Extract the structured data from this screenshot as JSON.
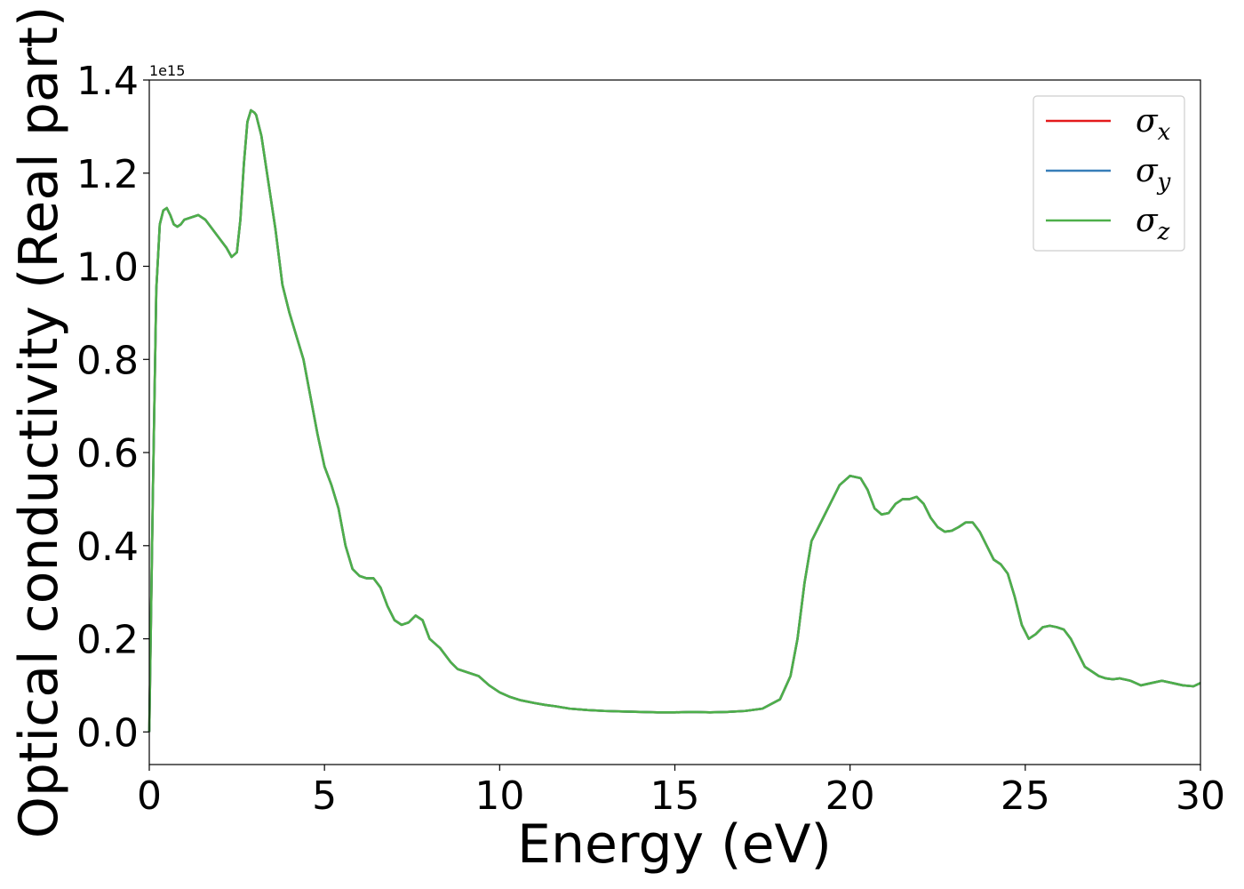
{
  "chart_data": {
    "type": "line",
    "title": "",
    "xlabel": "Energy (eV)",
    "ylabel": "Optical conductivity (Real part)",
    "y_offset_label": "1e15",
    "y_scale": 1000000000000000.0,
    "xlim": [
      0,
      30
    ],
    "ylim": [
      -0.07,
      1.4
    ],
    "x_ticks": [
      "0",
      "5",
      "10",
      "15",
      "20",
      "25",
      "30"
    ],
    "y_ticks": [
      "0.0",
      "0.2",
      "0.4",
      "0.6",
      "0.8",
      "1.0",
      "1.2",
      "1.4"
    ],
    "grid": false,
    "legend_position": "top-right",
    "series": [
      {
        "name": "σx",
        "symbol": "σ",
        "sub": "x",
        "color": "#e41a1c"
      },
      {
        "name": "σy",
        "symbol": "σ",
        "sub": "y",
        "color": "#377eb8"
      },
      {
        "name": "σz",
        "symbol": "σ",
        "sub": "z",
        "color": "#4daf4a"
      }
    ],
    "x": [
      0,
      0.1,
      0.2,
      0.3,
      0.4,
      0.5,
      0.6,
      0.7,
      0.8,
      0.9,
      1.0,
      1.2,
      1.4,
      1.6,
      1.8,
      2.0,
      2.2,
      2.35,
      2.5,
      2.6,
      2.7,
      2.8,
      2.9,
      3.0,
      3.05,
      3.1,
      3.2,
      3.4,
      3.6,
      3.8,
      4.0,
      4.2,
      4.4,
      4.6,
      4.8,
      5.0,
      5.2,
      5.4,
      5.6,
      5.8,
      6.0,
      6.2,
      6.4,
      6.6,
      6.8,
      7.0,
      7.2,
      7.4,
      7.6,
      7.8,
      8.0,
      8.3,
      8.6,
      8.8,
      9.0,
      9.2,
      9.4,
      9.7,
      10.0,
      10.3,
      10.6,
      11.0,
      11.3,
      11.6,
      12.0,
      12.5,
      13.0,
      13.5,
      14.0,
      14.5,
      15.0,
      15.5,
      16.0,
      16.5,
      17.0,
      17.5,
      18.0,
      18.3,
      18.5,
      18.7,
      18.9,
      19.1,
      19.3,
      19.5,
      19.7,
      20.0,
      20.3,
      20.5,
      20.7,
      20.9,
      21.1,
      21.3,
      21.5,
      21.7,
      21.9,
      22.1,
      22.3,
      22.5,
      22.7,
      22.9,
      23.1,
      23.3,
      23.5,
      23.7,
      23.9,
      24.1,
      24.3,
      24.5,
      24.7,
      24.9,
      25.1,
      25.3,
      25.5,
      25.7,
      25.9,
      26.1,
      26.3,
      26.5,
      26.7,
      26.9,
      27.1,
      27.3,
      27.5,
      27.7,
      28.0,
      28.3,
      28.6,
      28.9,
      29.2,
      29.5,
      29.8,
      30.0
    ],
    "y": [
      0.0,
      0.5,
      0.95,
      1.09,
      1.12,
      1.125,
      1.11,
      1.09,
      1.085,
      1.09,
      1.1,
      1.105,
      1.11,
      1.1,
      1.08,
      1.06,
      1.04,
      1.02,
      1.03,
      1.1,
      1.22,
      1.31,
      1.335,
      1.33,
      1.325,
      1.31,
      1.28,
      1.18,
      1.08,
      0.96,
      0.9,
      0.85,
      0.8,
      0.72,
      0.64,
      0.57,
      0.53,
      0.48,
      0.4,
      0.35,
      0.335,
      0.33,
      0.33,
      0.31,
      0.27,
      0.24,
      0.23,
      0.235,
      0.25,
      0.24,
      0.2,
      0.18,
      0.15,
      0.135,
      0.13,
      0.125,
      0.12,
      0.1,
      0.085,
      0.075,
      0.068,
      0.062,
      0.058,
      0.055,
      0.05,
      0.047,
      0.045,
      0.044,
      0.043,
      0.042,
      0.042,
      0.043,
      0.042,
      0.043,
      0.045,
      0.05,
      0.07,
      0.12,
      0.2,
      0.32,
      0.41,
      0.44,
      0.47,
      0.5,
      0.53,
      0.55,
      0.545,
      0.52,
      0.48,
      0.467,
      0.47,
      0.49,
      0.5,
      0.5,
      0.505,
      0.49,
      0.46,
      0.44,
      0.43,
      0.432,
      0.44,
      0.45,
      0.45,
      0.43,
      0.4,
      0.37,
      0.36,
      0.34,
      0.29,
      0.23,
      0.2,
      0.21,
      0.225,
      0.228,
      0.225,
      0.22,
      0.2,
      0.17,
      0.14,
      0.13,
      0.12,
      0.115,
      0.113,
      0.115,
      0.11,
      0.1,
      0.105,
      0.11,
      0.105,
      0.1,
      0.098,
      0.105
    ]
  }
}
